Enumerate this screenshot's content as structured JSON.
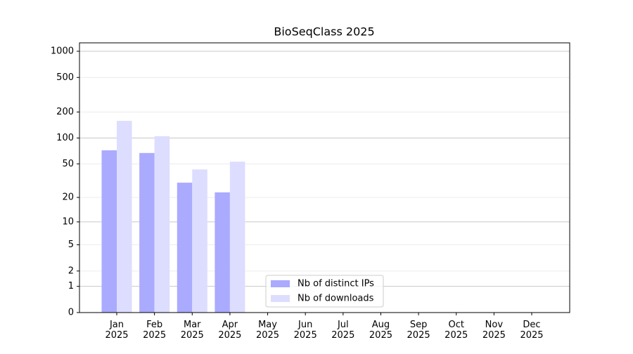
{
  "chart_data": {
    "type": "bar",
    "title": "BioSeqClass 2025",
    "categories": [
      "Jan\n2025",
      "Feb\n2025",
      "Mar\n2025",
      "Apr\n2025",
      "May\n2025",
      "Jun\n2025",
      "Jul\n2025",
      "Aug\n2025",
      "Sep\n2025",
      "Oct\n2025",
      "Nov\n2025",
      "Dec\n2025"
    ],
    "series": [
      {
        "name": "Nb of distinct IPs",
        "color": "#aaaaff",
        "values": [
          72,
          67,
          30,
          23,
          null,
          null,
          null,
          null,
          null,
          null,
          null,
          null
        ]
      },
      {
        "name": "Nb of downloads",
        "color": "#ddddff",
        "values": [
          158,
          105,
          43,
          53,
          null,
          null,
          null,
          null,
          null,
          null,
          null,
          null
        ]
      }
    ],
    "yscale": "log1p",
    "ylim": [
      0,
      1250
    ],
    "yticks": [
      0,
      1,
      2,
      5,
      10,
      20,
      50,
      100,
      200,
      500,
      1000
    ],
    "grid": true,
    "legend": "lower center"
  }
}
